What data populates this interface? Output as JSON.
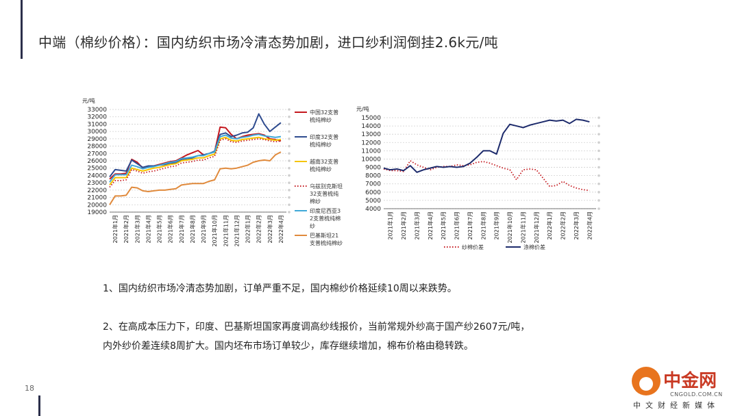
{
  "title": "中端（棉纱价格）：国内纺织市场冷清态势加剧，进口纱利润倒挂2.6k元/吨",
  "page_number": "18",
  "paragraphs": {
    "p1": "1、国内纺织市场冷清态势加剧，订单严重不足，国内棉纱价格延续10周以来跌势。",
    "p2_line1": "2、在高成本压力下，印度、巴基斯坦国家再度调高纱线报价，当前常规外纱高于国产纱2607元/吨，",
    "p2_line2": "内外纱价差连续8周扩大。国内坯布市场订单较少，库存继续增加，棉布价格由稳转跌。"
  },
  "logo": {
    "main": "中金网",
    "domain": "CNGOLD.COM.CN",
    "sub": "中文财经新媒体"
  },
  "colors": {
    "china": "#c4161c",
    "india": "#2e4b8f",
    "vietnam": "#f5c400",
    "uzbekistan": "#c4161c",
    "indonesia": "#3fa9d8",
    "pakistan": "#e08a3c",
    "yarn_spread": "#c4161c",
    "cotton_spread": "#1c2a6b"
  },
  "chart_data": [
    {
      "type": "line",
      "unit_label": "元/吨",
      "ylim": [
        19000,
        33000
      ],
      "yticks": [
        19000,
        20000,
        21000,
        22000,
        23000,
        24000,
        25000,
        26000,
        27000,
        28000,
        29000,
        30000,
        31000,
        32000,
        33000
      ],
      "xticks": [
        "2021年1月",
        "2021年2月",
        "2021年3月",
        "2021年4月",
        "2021年5月",
        "2021年6月",
        "2021年7月",
        "2021年8月",
        "2021年9月",
        "2021年10月",
        "2021年11月",
        "2021年12月",
        "2022年1月",
        "2022年2月",
        "2022年3月",
        "2022年4月"
      ],
      "x": [
        0,
        0.5,
        1,
        1.5,
        2,
        2.5,
        3,
        3.5,
        4,
        4.5,
        5,
        5.5,
        6,
        6.5,
        7,
        7.5,
        8,
        8.5,
        9,
        9.5,
        10,
        10.5,
        11,
        11.5,
        12,
        12.5,
        13,
        13.5,
        14,
        14.5,
        15,
        15.5
      ],
      "grid": true,
      "legend_position": "right",
      "series": [
        {
          "name": "中国32支普梳纯棉纱",
          "key": "china",
          "style": "solid",
          "values": [
            23500,
            24200,
            24200,
            24300,
            26200,
            25800,
            25000,
            25200,
            25300,
            25500,
            25700,
            25900,
            26000,
            26400,
            26800,
            27100,
            27400,
            26800,
            27000,
            27200,
            30600,
            30500,
            29600,
            29000,
            29300,
            29500,
            29600,
            29700,
            29500,
            29000,
            28900,
            28700
          ]
        },
        {
          "name": "印度32支普梳纯棉纱",
          "key": "india",
          "style": "solid",
          "values": [
            23800,
            24800,
            24700,
            24600,
            26100,
            25600,
            25100,
            25300,
            25300,
            25400,
            25500,
            25700,
            25700,
            26200,
            26300,
            26400,
            26700,
            26800,
            27000,
            27300,
            29600,
            29800,
            29300,
            29500,
            29800,
            29900,
            30500,
            32400,
            31000,
            30000,
            30600,
            31200
          ]
        },
        {
          "name": "越南32支普梳纯棉纱",
          "key": "vietnam",
          "style": "solid",
          "values": [
            22700,
            23700,
            23700,
            23700,
            25000,
            24800,
            24600,
            24800,
            25000,
            25100,
            25300,
            25500,
            25600,
            26000,
            26100,
            26200,
            26400,
            26400,
            26700,
            26900,
            29000,
            29200,
            28800,
            28700,
            28900,
            29000,
            29100,
            29200,
            29000,
            28900,
            28800,
            28900
          ]
        },
        {
          "name": "乌兹别克斯坦32支普梳纯棉纱",
          "key": "uzbekistan",
          "style": "dotted",
          "values": [
            22400,
            23300,
            23300,
            23400,
            24800,
            24600,
            24300,
            24500,
            24600,
            24800,
            25000,
            25200,
            25300,
            25700,
            25800,
            25900,
            26100,
            26100,
            26400,
            26600,
            28800,
            29000,
            28600,
            28500,
            28700,
            28800,
            28900,
            29000,
            28900,
            28700,
            28600,
            28700
          ]
        },
        {
          "name": "印度尼西亚32支普梳纯棉纱",
          "key": "indonesia",
          "style": "solid",
          "values": [
            23100,
            24100,
            24100,
            24100,
            25400,
            25200,
            24900,
            25100,
            25200,
            25400,
            25600,
            25800,
            25900,
            26300,
            26400,
            26500,
            26700,
            26700,
            27000,
            27200,
            29300,
            29500,
            29100,
            29000,
            29200,
            29300,
            29500,
            29600,
            29400,
            29300,
            29200,
            29300
          ]
        },
        {
          "name": "巴基斯坦21支普梳纯棉纱",
          "key": "pakistan",
          "style": "solid",
          "values": [
            20000,
            21200,
            21200,
            21300,
            22400,
            22300,
            21900,
            21800,
            21900,
            22000,
            22000,
            22100,
            22200,
            22700,
            22800,
            22900,
            22900,
            22900,
            23200,
            23400,
            24900,
            25000,
            24900,
            25000,
            25200,
            25400,
            25800,
            26000,
            26100,
            26000,
            26800,
            27200
          ]
        }
      ]
    },
    {
      "type": "line",
      "unit_label": "元/吨",
      "ylim": [
        4000,
        15000
      ],
      "yticks": [
        4000,
        5000,
        6000,
        7000,
        8000,
        9000,
        10000,
        11000,
        12000,
        13000,
        14000,
        15000
      ],
      "xticks": [
        "2021年1月",
        "2021年2月",
        "2021年3月",
        "2021年4月",
        "2021年5月",
        "2021年6月",
        "2021年7月",
        "2021年8月",
        "2021年9月",
        "2021年10月",
        "2021年11月",
        "2021年12月",
        "2022年1月",
        "2022年2月",
        "2022年3月",
        "2022年4月"
      ],
      "x": [
        0,
        0.5,
        1,
        1.5,
        2,
        2.5,
        3,
        3.5,
        4,
        4.5,
        5,
        5.5,
        6,
        6.5,
        7,
        7.5,
        8,
        8.5,
        9,
        9.5,
        10,
        10.5,
        11,
        11.5,
        12,
        12.5,
        13,
        13.5,
        14,
        14.5,
        15,
        15.5
      ],
      "grid": true,
      "legend_position": "bottom",
      "series": [
        {
          "name": "纱棉价差",
          "key": "yarn_spread",
          "style": "dotted",
          "values": [
            8800,
            8600,
            8600,
            8500,
            9800,
            9300,
            9000,
            8700,
            9000,
            9100,
            9100,
            9300,
            9200,
            9300,
            9600,
            9700,
            9500,
            9200,
            8900,
            8700,
            7500,
            8700,
            8800,
            8700,
            7700,
            6700,
            6800,
            7300,
            6800,
            6500,
            6300,
            6200
          ]
        },
        {
          "name": "涤棉价差",
          "key": "cotton_spread",
          "style": "solid",
          "values": [
            8900,
            8700,
            8800,
            8600,
            9200,
            8400,
            8700,
            8900,
            9100,
            9000,
            9100,
            9000,
            9100,
            9500,
            10200,
            11000,
            11000,
            10600,
            13100,
            14200,
            14000,
            13800,
            14100,
            14300,
            14500,
            14700,
            14600,
            14700,
            14300,
            14800,
            14700,
            14500
          ]
        }
      ]
    }
  ]
}
